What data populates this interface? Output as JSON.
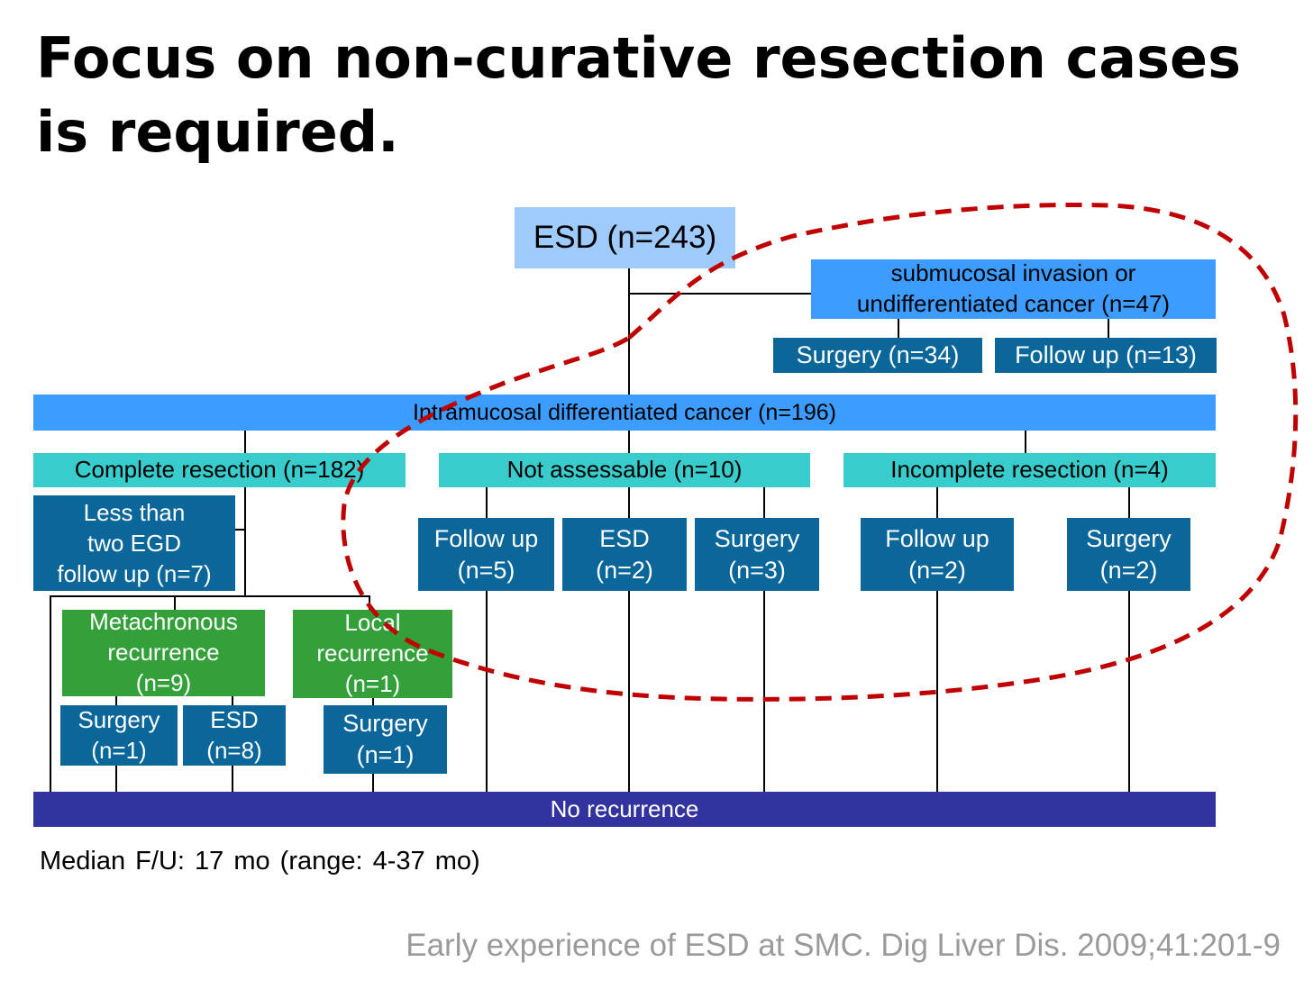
{
  "title": "Focus on non-curative resection cases is required.",
  "nodes": {
    "esd_total": "ESD (n=243)",
    "submucosal": "submucosal invasion or\nundifferentiated cancer (n=47)",
    "sub_surgery": "Surgery (n=34)",
    "sub_followup": "Follow up (n=13)",
    "intramucosal": "Intramucosal differentiated cancer (n=196)",
    "complete": "Complete resection (n=182)",
    "not_assessable": "Not assessable (n=10)",
    "incomplete": "Incomplete resection (n=4)",
    "less_than_two": "Less than\ntwo EGD\nfollow up (n=7)",
    "na_followup": "Follow up\n(n=5)",
    "na_esd": "ESD\n(n=2)",
    "na_surgery": "Surgery\n(n=3)",
    "inc_followup": "Follow up\n(n=2)",
    "inc_surgery": "Surgery\n(n=2)",
    "metachronous": "Metachronous\nrecurrence\n(n=9)",
    "local": "Local\nrecurrence\n(n=1)",
    "meta_surgery": "Surgery\n(n=1)",
    "meta_esd": "ESD\n(n=8)",
    "local_surgery": "Surgery\n(n=1)",
    "no_recurrence": "No recurrence"
  },
  "footnote": "Median F/U: 17 mo (range: 4-37 mo)",
  "citation": "Early experience of ESD at SMC. Dig Liver Dis. 2009;41:201-9",
  "colors": {
    "light_blue": "#9ecbfb",
    "bright_blue": "#3c9cff",
    "teal": "#38cccc",
    "dark_blue": "#0b6699",
    "green": "#34a03a",
    "navy": "#3333a0",
    "highlight_loop": "#c00000"
  }
}
